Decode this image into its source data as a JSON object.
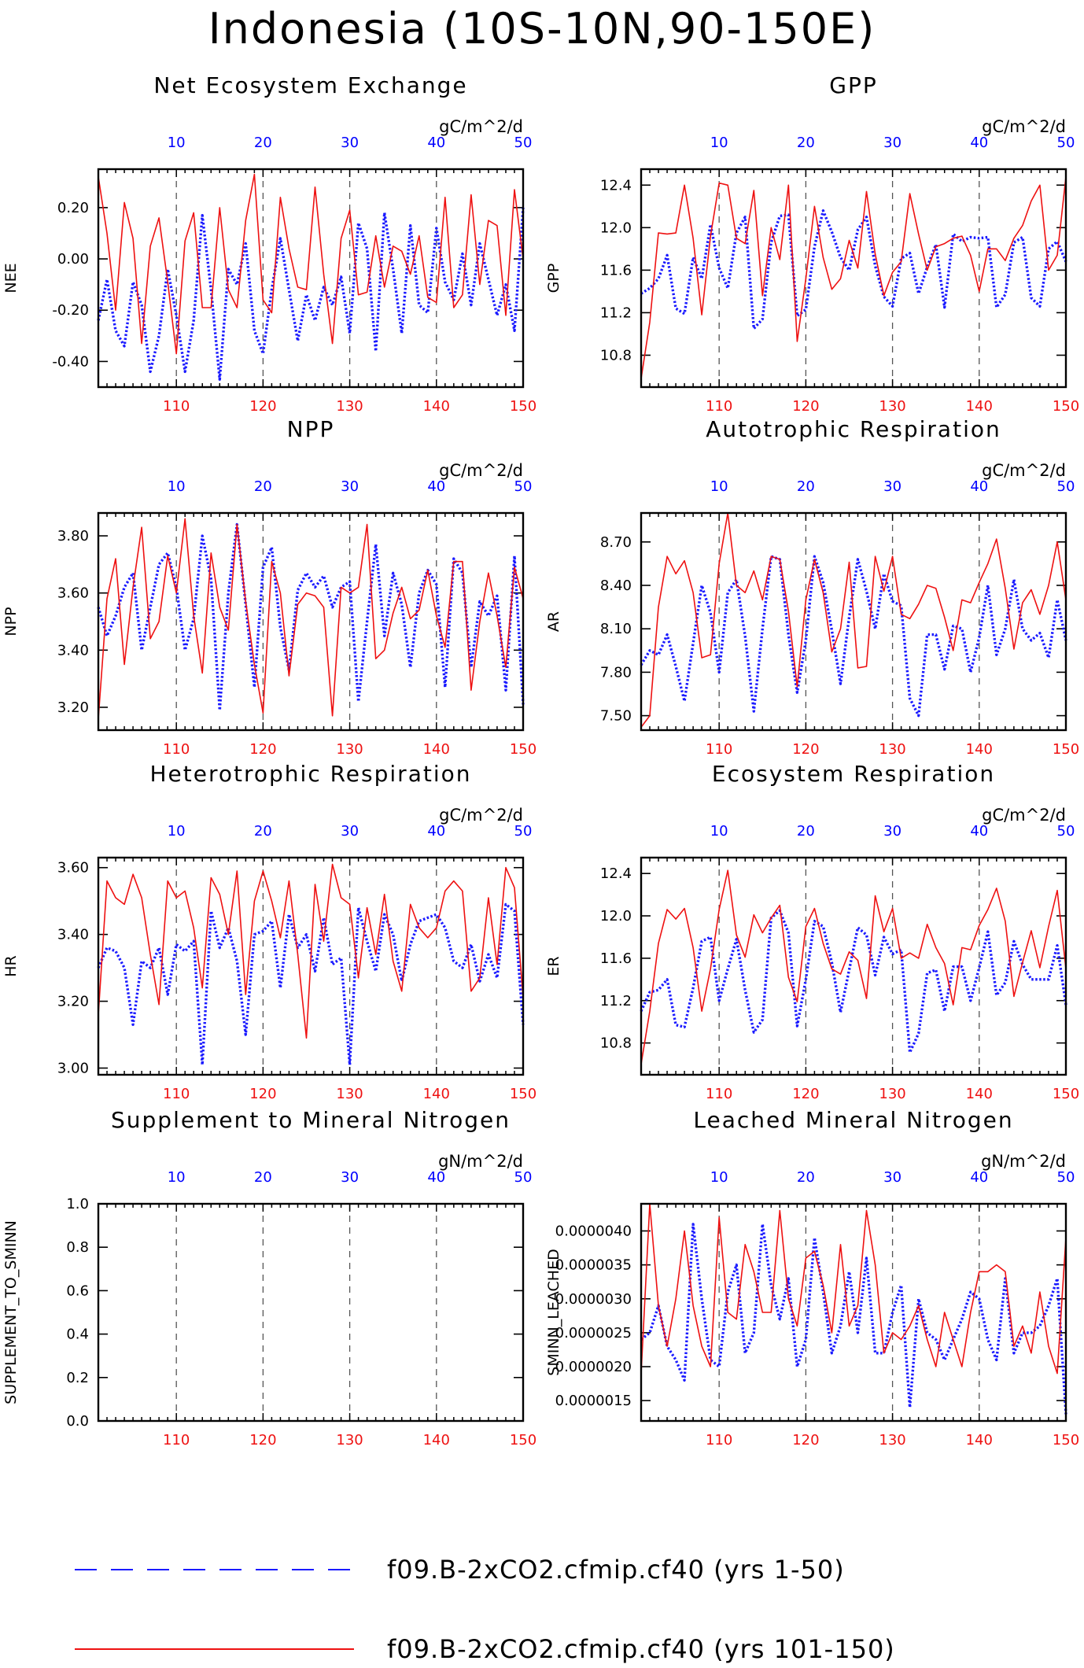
{
  "title": "Indonesia (10S-10N,90-150E)",
  "colors": {
    "series1": "#1a1aff",
    "series2": "#ee1111",
    "axis": "#000000",
    "top_ticks": "#0000ff",
    "bottom_ticks": "#ee1111"
  },
  "legend": {
    "items": [
      {
        "label": "f09.B-2xCO2.cfmip.cf40 (yrs 1-50)",
        "color": "#1a1aff",
        "style": "dashed"
      },
      {
        "label": "f09.B-2xCO2.cfmip.cf40 (yrs 101-150)",
        "color": "#ee1111",
        "style": "solid"
      }
    ]
  },
  "chart_data": [
    {
      "type": "line",
      "title": "Net Ecosystem Exchange",
      "ylabel": "NEE",
      "units": "gC/m^2/d",
      "ylim": [
        -0.5,
        0.35
      ],
      "yticks": [
        -0.4,
        -0.2,
        0.0,
        0.2
      ],
      "ytick_labels": [
        "-0.40",
        "-0.20",
        "0.00",
        "0.20"
      ],
      "top_x": [
        10,
        20,
        30,
        40,
        50
      ],
      "bottom_x": [
        110,
        120,
        130,
        140,
        150
      ],
      "series": [
        {
          "years": "1-50",
          "values": [
            -0.24,
            -0.08,
            -0.28,
            -0.34,
            -0.09,
            -0.18,
            -0.44,
            -0.3,
            -0.04,
            -0.22,
            -0.44,
            -0.24,
            0.17,
            -0.12,
            -0.47,
            -0.04,
            -0.1,
            0.06,
            -0.28,
            -0.37,
            -0.12,
            0.08,
            -0.12,
            -0.32,
            -0.14,
            -0.24,
            -0.11,
            -0.18,
            -0.07,
            -0.29,
            0.14,
            0.04,
            -0.36,
            0.18,
            -0.04,
            -0.29,
            0.13,
            -0.18,
            -0.21,
            0.12,
            -0.09,
            -0.16,
            0.02,
            -0.18,
            0.06,
            -0.08,
            -0.22,
            -0.1,
            -0.28,
            0.2
          ]
        },
        {
          "years": "101-150",
          "values": [
            0.32,
            0.1,
            -0.2,
            0.22,
            0.08,
            -0.33,
            0.05,
            0.16,
            -0.09,
            -0.37,
            0.07,
            0.18,
            -0.19,
            -0.19,
            0.2,
            -0.12,
            -0.19,
            0.15,
            0.33,
            -0.16,
            -0.21,
            0.24,
            0.04,
            -0.11,
            -0.12,
            0.28,
            -0.06,
            -0.33,
            0.08,
            0.19,
            -0.14,
            -0.13,
            0.09,
            -0.11,
            0.05,
            0.03,
            -0.06,
            0.09,
            -0.15,
            -0.17,
            0.24,
            -0.19,
            -0.14,
            0.25,
            -0.1,
            0.15,
            0.13,
            -0.22,
            0.27,
            0.0
          ]
        }
      ]
    },
    {
      "type": "line",
      "title": "GPP",
      "ylabel": "GPP",
      "units": "gC/m^2/d",
      "ylim": [
        10.5,
        12.55
      ],
      "yticks": [
        10.8,
        11.2,
        11.6,
        12.0,
        12.4
      ],
      "ytick_labels": [
        "10.8",
        "11.2",
        "11.6",
        "12.0",
        "12.4"
      ],
      "top_x": [
        10,
        20,
        30,
        40,
        50
      ],
      "bottom_x": [
        110,
        120,
        130,
        140,
        150
      ],
      "series": [
        {
          "years": "1-50",
          "values": [
            11.38,
            11.43,
            11.52,
            11.74,
            11.24,
            11.19,
            11.72,
            11.52,
            12.03,
            11.62,
            11.43,
            11.95,
            12.1,
            11.05,
            11.14,
            11.86,
            12.11,
            12.12,
            11.17,
            11.23,
            11.82,
            12.16,
            11.96,
            11.72,
            11.6,
            11.98,
            12.1,
            11.64,
            11.35,
            11.26,
            11.71,
            11.76,
            11.38,
            11.63,
            11.84,
            11.25,
            11.94,
            11.87,
            11.91,
            11.9,
            11.91,
            11.25,
            11.37,
            11.86,
            11.91,
            11.34,
            11.26,
            11.8,
            11.87,
            11.68
          ]
        },
        {
          "years": "101-150",
          "values": [
            10.58,
            11.11,
            11.95,
            11.94,
            11.95,
            12.4,
            11.9,
            11.18,
            11.92,
            12.42,
            12.4,
            11.9,
            11.85,
            12.35,
            11.36,
            12.0,
            11.7,
            12.4,
            10.93,
            11.52,
            12.2,
            11.72,
            11.42,
            11.52,
            11.88,
            11.62,
            12.34,
            11.75,
            11.36,
            11.58,
            11.68,
            12.32,
            11.94,
            11.6,
            11.82,
            11.85,
            11.9,
            11.92,
            11.74,
            11.4,
            11.8,
            11.8,
            11.69,
            11.9,
            12.02,
            12.25,
            12.4,
            11.6,
            11.74,
            12.48
          ]
        }
      ]
    },
    {
      "type": "line",
      "title": "NPP",
      "ylabel": "NPP",
      "units": "gC/m^2/d",
      "ylim": [
        3.12,
        3.88
      ],
      "yticks": [
        3.2,
        3.4,
        3.6,
        3.8
      ],
      "ytick_labels": [
        "3.20",
        "3.40",
        "3.60",
        "3.80"
      ],
      "top_x": [
        10,
        20,
        30,
        40,
        50
      ],
      "bottom_x": [
        110,
        120,
        130,
        140,
        150
      ],
      "series": [
        {
          "years": "1-50",
          "values": [
            3.55,
            3.45,
            3.52,
            3.62,
            3.67,
            3.4,
            3.55,
            3.7,
            3.74,
            3.62,
            3.4,
            3.51,
            3.8,
            3.65,
            3.19,
            3.6,
            3.84,
            3.56,
            3.27,
            3.69,
            3.76,
            3.48,
            3.33,
            3.61,
            3.67,
            3.62,
            3.66,
            3.55,
            3.62,
            3.64,
            3.22,
            3.5,
            3.77,
            3.45,
            3.67,
            3.56,
            3.34,
            3.6,
            3.68,
            3.63,
            3.27,
            3.72,
            3.67,
            3.34,
            3.57,
            3.52,
            3.59,
            3.26,
            3.73,
            3.21
          ]
        },
        {
          "years": "101-150",
          "values": [
            3.16,
            3.58,
            3.72,
            3.35,
            3.62,
            3.83,
            3.44,
            3.5,
            3.73,
            3.6,
            3.86,
            3.52,
            3.32,
            3.74,
            3.55,
            3.47,
            3.84,
            3.57,
            3.35,
            3.18,
            3.71,
            3.6,
            3.31,
            3.56,
            3.6,
            3.59,
            3.55,
            3.17,
            3.62,
            3.6,
            3.62,
            3.84,
            3.37,
            3.4,
            3.53,
            3.62,
            3.51,
            3.54,
            3.68,
            3.52,
            3.41,
            3.71,
            3.71,
            3.26,
            3.5,
            3.67,
            3.52,
            3.34,
            3.69,
            3.58
          ]
        }
      ]
    },
    {
      "type": "line",
      "title": "Autotrophic Respiration",
      "ylabel": "AR",
      "units": "gC/m^2/d",
      "ylim": [
        7.4,
        8.9
      ],
      "yticks": [
        7.5,
        7.8,
        8.1,
        8.4,
        8.7
      ],
      "ytick_labels": [
        "7.50",
        "7.80",
        "8.10",
        "8.40",
        "8.70"
      ],
      "top_x": [
        10,
        20,
        30,
        40,
        50
      ],
      "bottom_x": [
        110,
        120,
        130,
        140,
        150
      ],
      "series": [
        {
          "years": "1-50",
          "values": [
            7.85,
            7.95,
            7.92,
            8.06,
            7.84,
            7.6,
            8.0,
            8.4,
            8.21,
            7.8,
            8.35,
            8.44,
            8.05,
            7.53,
            8.1,
            8.6,
            8.58,
            8.06,
            7.66,
            8.02,
            8.6,
            8.42,
            8.09,
            7.72,
            8.18,
            8.58,
            8.36,
            8.1,
            8.48,
            8.29,
            8.26,
            7.62,
            7.5,
            8.06,
            8.06,
            7.82,
            8.12,
            8.1,
            7.8,
            8.04,
            8.4,
            7.92,
            8.1,
            8.44,
            8.1,
            8.02,
            8.07,
            7.9,
            8.3,
            8.02
          ]
        },
        {
          "years": "101-150",
          "values": [
            7.42,
            7.5,
            8.25,
            8.6,
            8.48,
            8.57,
            8.35,
            7.9,
            7.92,
            8.55,
            8.9,
            8.4,
            8.35,
            8.5,
            8.3,
            8.6,
            8.58,
            8.22,
            7.7,
            8.3,
            8.58,
            8.35,
            7.94,
            8.1,
            8.56,
            7.83,
            7.84,
            8.6,
            8.36,
            8.6,
            8.2,
            8.17,
            8.27,
            8.4,
            8.38,
            8.18,
            7.95,
            8.3,
            8.28,
            8.42,
            8.55,
            8.72,
            8.38,
            7.96,
            8.28,
            8.37,
            8.2,
            8.4,
            8.7,
            8.3
          ]
        }
      ]
    },
    {
      "type": "line",
      "title": "Heterotrophic Respiration",
      "ylabel": "HR",
      "units": "gC/m^2/d",
      "ylim": [
        2.98,
        3.63
      ],
      "yticks": [
        3.0,
        3.2,
        3.4,
        3.6
      ],
      "ytick_labels": [
        "3.00",
        "3.20",
        "3.40",
        "3.60"
      ],
      "top_x": [
        10,
        20,
        30,
        40,
        50
      ],
      "bottom_x": [
        110,
        120,
        130,
        140,
        150
      ],
      "series": [
        {
          "years": "1-50",
          "values": [
            3.3,
            3.36,
            3.35,
            3.3,
            3.13,
            3.32,
            3.3,
            3.36,
            3.22,
            3.37,
            3.35,
            3.38,
            3.01,
            3.47,
            3.36,
            3.42,
            3.32,
            3.1,
            3.4,
            3.41,
            3.44,
            3.24,
            3.46,
            3.36,
            3.4,
            3.29,
            3.45,
            3.31,
            3.33,
            3.01,
            3.48,
            3.38,
            3.29,
            3.46,
            3.4,
            3.26,
            3.37,
            3.44,
            3.45,
            3.46,
            3.42,
            3.32,
            3.3,
            3.37,
            3.26,
            3.34,
            3.27,
            3.49,
            3.47,
            3.13
          ]
        },
        {
          "years": "101-150",
          "values": [
            3.16,
            3.56,
            3.51,
            3.49,
            3.58,
            3.51,
            3.34,
            3.19,
            3.56,
            3.51,
            3.53,
            3.42,
            3.24,
            3.57,
            3.52,
            3.4,
            3.59,
            3.22,
            3.5,
            3.59,
            3.5,
            3.39,
            3.56,
            3.34,
            3.09,
            3.55,
            3.38,
            3.61,
            3.51,
            3.49,
            3.27,
            3.48,
            3.34,
            3.52,
            3.32,
            3.23,
            3.49,
            3.42,
            3.39,
            3.42,
            3.53,
            3.56,
            3.53,
            3.23,
            3.27,
            3.51,
            3.31,
            3.6,
            3.54,
            3.21
          ]
        }
      ]
    },
    {
      "type": "line",
      "title": "Ecosystem Respiration",
      "ylabel": "ER",
      "units": "gC/m^2/d",
      "ylim": [
        10.5,
        12.55
      ],
      "yticks": [
        10.8,
        11.2,
        11.6,
        12.0,
        12.4
      ],
      "ytick_labels": [
        "10.8",
        "11.2",
        "11.6",
        "12.0",
        "12.4"
      ],
      "top_x": [
        10,
        20,
        30,
        40,
        50
      ],
      "bottom_x": [
        110,
        120,
        130,
        140,
        150
      ],
      "series": [
        {
          "years": "1-50",
          "values": [
            11.1,
            11.28,
            11.3,
            11.4,
            10.97,
            10.95,
            11.32,
            11.76,
            11.8,
            11.2,
            11.5,
            11.78,
            11.3,
            10.9,
            11.02,
            11.98,
            12.05,
            11.84,
            10.96,
            11.4,
            11.95,
            11.9,
            11.56,
            11.09,
            11.49,
            11.89,
            11.82,
            11.44,
            11.8,
            11.64,
            11.68,
            10.71,
            10.89,
            11.46,
            11.49,
            11.1,
            11.52,
            11.52,
            11.2,
            11.51,
            11.85,
            11.25,
            11.37,
            11.76,
            11.54,
            11.4,
            11.4,
            11.4,
            11.72,
            11.16
          ]
        },
        {
          "years": "101-150",
          "values": [
            10.6,
            11.1,
            11.74,
            12.06,
            11.97,
            12.07,
            11.7,
            11.1,
            11.5,
            12.06,
            12.43,
            11.82,
            11.61,
            12.01,
            11.84,
            11.98,
            12.1,
            11.42,
            11.19,
            11.9,
            12.07,
            11.74,
            11.5,
            11.45,
            11.66,
            11.58,
            11.22,
            12.19,
            11.85,
            12.07,
            11.6,
            11.65,
            11.6,
            11.92,
            11.7,
            11.55,
            11.16,
            11.7,
            11.68,
            11.91,
            12.06,
            12.26,
            11.95,
            11.24,
            11.56,
            11.86,
            11.51,
            11.9,
            12.24,
            11.5
          ]
        }
      ]
    },
    {
      "type": "line",
      "title": "Supplement to Mineral Nitrogen",
      "ylabel": "SUPPLEMENT_TO_SMINN",
      "units": "gN/m^2/d",
      "ylim": [
        0.0,
        1.0
      ],
      "yticks": [
        0.0,
        0.2,
        0.4,
        0.6,
        0.8,
        1.0
      ],
      "ytick_labels": [
        "0.0",
        "0.2",
        "0.4",
        "0.6",
        "0.8",
        "1.0"
      ],
      "top_x": [
        10,
        20,
        30,
        40,
        50
      ],
      "bottom_x": [
        110,
        120,
        130,
        140,
        150
      ],
      "series": []
    },
    {
      "type": "line",
      "title": "Leached Mineral Nitrogen",
      "ylabel": "SMINN_LEACHED",
      "units": "gN/m^2/d",
      "ylim": [
        1.2e-06,
        4.4e-06
      ],
      "yticks": [
        1.5e-06,
        2e-06,
        2.5e-06,
        3e-06,
        3.5e-06,
        4e-06
      ],
      "ytick_labels": [
        "0.0000015",
        "0.0000020",
        "0.0000025",
        "0.0000030",
        "0.0000035",
        "0.0000040"
      ],
      "top_x": [
        10,
        20,
        30,
        40,
        50
      ],
      "bottom_x": [
        110,
        120,
        130,
        140,
        150
      ],
      "series": [
        {
          "years": "1-50",
          "values": [
            2.4e-06,
            2.5e-06,
            2.9e-06,
            2.3e-06,
            2.1e-06,
            1.8e-06,
            4.1e-06,
            3e-06,
            2.1e-06,
            2e-06,
            3.1e-06,
            3.5e-06,
            2.2e-06,
            2.5e-06,
            4.1e-06,
            3.2e-06,
            2.7e-06,
            3.3e-06,
            2e-06,
            2.4e-06,
            3.9e-06,
            3.1e-06,
            2.2e-06,
            2.6e-06,
            3.4e-06,
            2.5e-06,
            3.6e-06,
            2.2e-06,
            2.2e-06,
            2.8e-06,
            3.2e-06,
            1.4e-06,
            3e-06,
            2.5e-06,
            2.4e-06,
            2.1e-06,
            2.4e-06,
            2.7e-06,
            3.1e-06,
            3e-06,
            2.4e-06,
            2.1e-06,
            3.3e-06,
            2.2e-06,
            2.5e-06,
            2.5e-06,
            2.6e-06,
            2.9e-06,
            3.3e-06,
            1.3e-06
          ]
        },
        {
          "years": "101-150",
          "values": [
            1.9e-06,
            4.4e-06,
            2.9e-06,
            2.3e-06,
            3e-06,
            4e-06,
            2.9e-06,
            2.3e-06,
            2e-06,
            4.2e-06,
            2.8e-06,
            2.7e-06,
            3.8e-06,
            3.4e-06,
            2.8e-06,
            2.8e-06,
            4.3e-06,
            3e-06,
            2.6e-06,
            3.6e-06,
            3.7e-06,
            3.2e-06,
            2.5e-06,
            3.8e-06,
            2.6e-06,
            2.9e-06,
            4.3e-06,
            3.5e-06,
            2.2e-06,
            2.5e-06,
            2.4e-06,
            2.6e-06,
            2.9e-06,
            2.4e-06,
            2e-06,
            2.8e-06,
            2.4e-06,
            2e-06,
            2.8e-06,
            3.4e-06,
            3.4e-06,
            3.5e-06,
            3.4e-06,
            2.3e-06,
            2.6e-06,
            2.2e-06,
            3.1e-06,
            2.3e-06,
            1.9e-06,
            3.9e-06
          ]
        }
      ]
    }
  ]
}
